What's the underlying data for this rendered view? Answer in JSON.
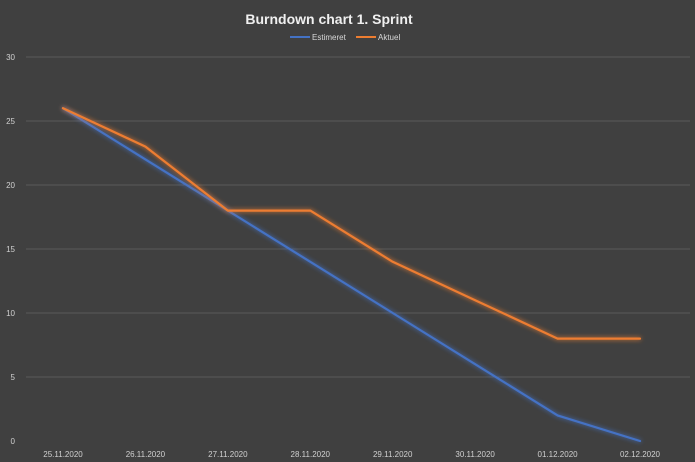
{
  "chart_data": {
    "type": "line",
    "title": "Burndown chart 1. Sprint",
    "xlabel": "",
    "ylabel": "",
    "categories": [
      "25.11.2020",
      "26.11.2020",
      "27.11.2020",
      "28.11.2020",
      "29.11.2020",
      "30.11.2020",
      "01.12.2020",
      "02.12.2020"
    ],
    "yticks": [
      "0",
      "5",
      "10",
      "15",
      "20",
      "25",
      "30"
    ],
    "ylim": [
      0,
      30
    ],
    "grid": true,
    "legend_position": "top-center",
    "series": [
      {
        "name": "Estimeret",
        "color": "#4472c4",
        "values": [
          26,
          22,
          18,
          14,
          10,
          6,
          2,
          0
        ]
      },
      {
        "name": "Aktuel",
        "color": "#ed7d31",
        "values": [
          26,
          23,
          18,
          18,
          14,
          11,
          8,
          8
        ]
      }
    ]
  }
}
